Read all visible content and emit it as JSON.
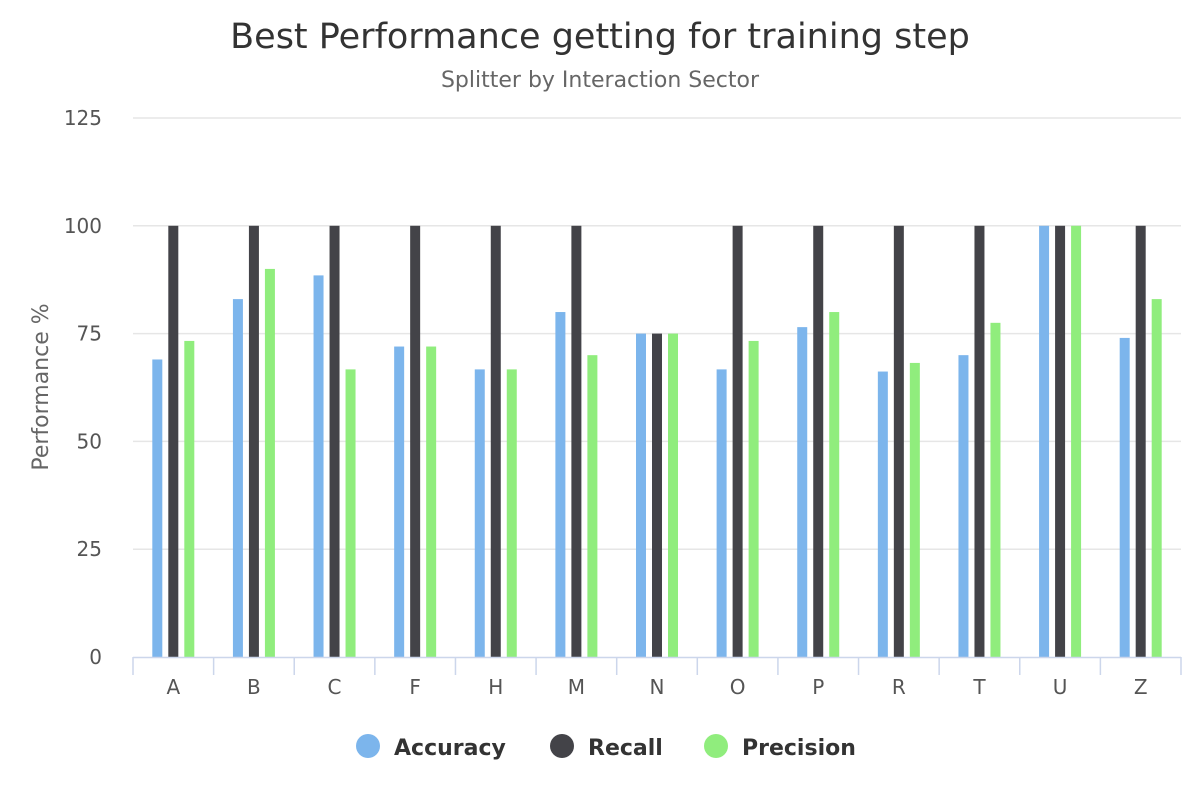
{
  "chart_data": {
    "type": "bar",
    "title": "Best Performance getting for training step",
    "subtitle": "Splitter by Interaction Sector",
    "xlabel": "",
    "ylabel": "Performance %",
    "ylim": [
      0,
      125
    ],
    "yticks": [
      0,
      25,
      50,
      75,
      100,
      125
    ],
    "grid": true,
    "legend_position": "bottom-center",
    "categories": [
      "A",
      "B",
      "C",
      "F",
      "H",
      "M",
      "N",
      "O",
      "P",
      "R",
      "T",
      "U",
      "Z"
    ],
    "series": [
      {
        "name": "Accuracy",
        "color": "#7cb5ec",
        "values": [
          69,
          83,
          88.5,
          72,
          66.7,
          80,
          75,
          66.7,
          76.5,
          66.2,
          70,
          100,
          74
        ]
      },
      {
        "name": "Recall",
        "color": "#434348",
        "values": [
          100,
          100,
          100,
          100,
          100,
          100,
          75,
          100,
          100,
          100,
          100,
          100,
          100
        ]
      },
      {
        "name": "Precision",
        "color": "#90ed7d",
        "values": [
          73.3,
          90,
          66.7,
          72,
          66.7,
          70,
          75,
          73.3,
          80,
          68.2,
          77.5,
          100,
          83
        ]
      }
    ]
  }
}
